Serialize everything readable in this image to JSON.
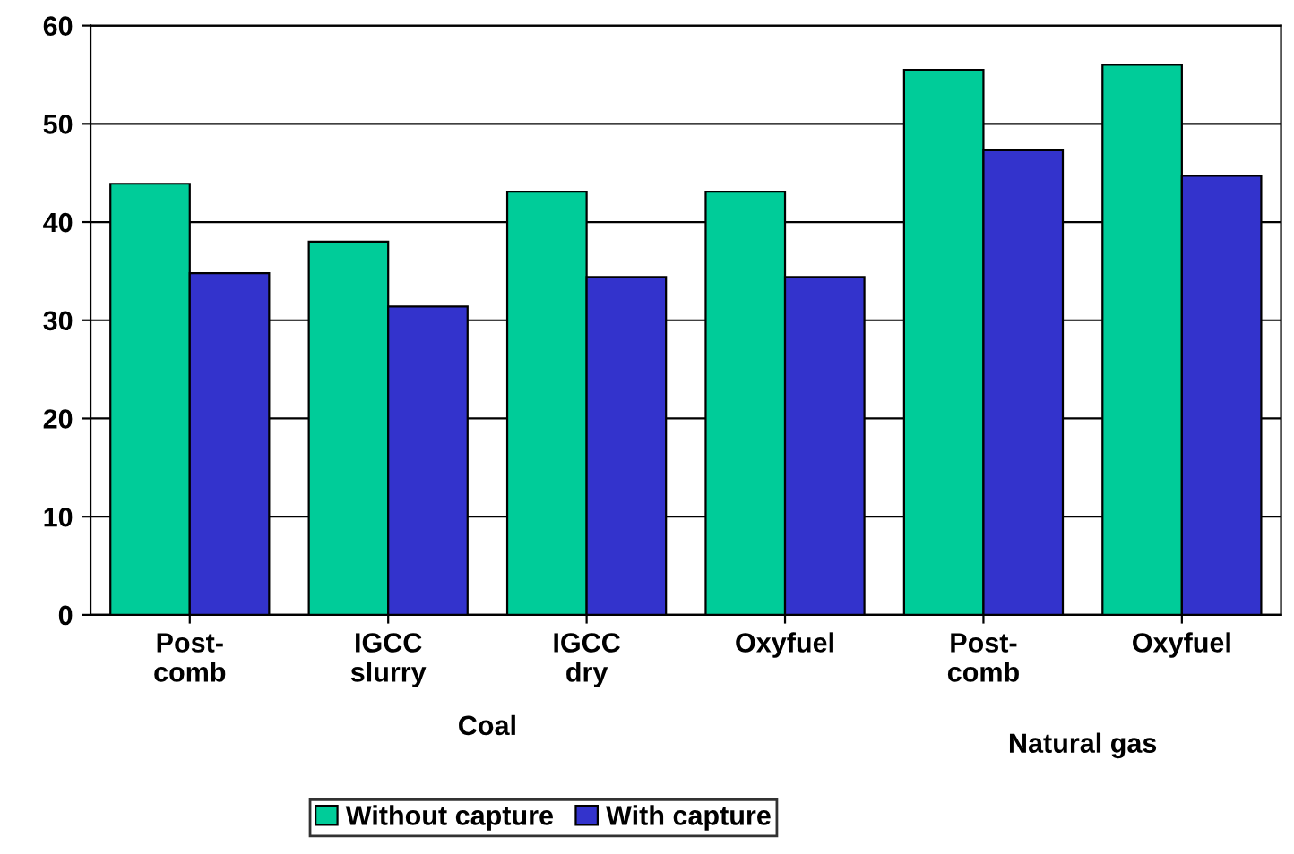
{
  "chart_data": {
    "type": "bar",
    "categories": [
      "Post-\ncomb",
      "IGCC\nslurry",
      "IGCC\ndry",
      "Oxyfuel",
      "Post-\ncomb",
      "Oxyfuel"
    ],
    "series": [
      {
        "name": "Without capture",
        "color": "#00cc99",
        "values": [
          43.9,
          38.0,
          43.1,
          43.1,
          55.5,
          56.0
        ]
      },
      {
        "name": "With capture",
        "color": "#3333cc",
        "values": [
          34.8,
          31.4,
          34.4,
          34.4,
          47.3,
          44.7
        ]
      }
    ],
    "ylim": [
      0,
      60
    ],
    "yticks": [
      0,
      10,
      20,
      30,
      40,
      50,
      60
    ],
    "annotations": [
      "Coal",
      "Natural gas"
    ],
    "grid": "y",
    "legend": "bottom"
  }
}
